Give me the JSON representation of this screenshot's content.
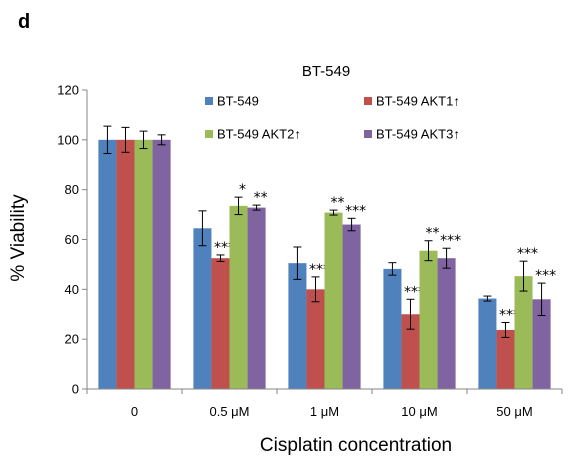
{
  "panel_label": "d",
  "chart_data": {
    "type": "bar",
    "title": "BT-549",
    "xlabel": "Cisplatin concentration",
    "ylabel": "% Viability",
    "ylim": [
      0,
      120
    ],
    "yticks": [
      0,
      20,
      40,
      60,
      80,
      100,
      120
    ],
    "categories": [
      "0",
      "0.5 μM",
      "1 μM",
      "10 μM",
      "50 μM"
    ],
    "legend_position": "top",
    "series": [
      {
        "name": "BT-549",
        "color": "#4f81bd",
        "values": [
          100,
          64.5,
          50.5,
          48.2,
          36.3
        ],
        "errors": [
          5.5,
          7,
          6.5,
          2.5,
          1
        ],
        "annotations": [
          "",
          "",
          "",
          "",
          ""
        ]
      },
      {
        "name": "BT-549 AKT1↑",
        "color": "#c0504d",
        "values": [
          100,
          52.5,
          40,
          30,
          23.7
        ],
        "errors": [
          5,
          1.3,
          5,
          6,
          3
        ],
        "annotations": [
          "",
          "***",
          "***",
          "***",
          "***"
        ]
      },
      {
        "name": "BT-549 AKT2↑",
        "color": "#9bbb59",
        "values": [
          100,
          73.5,
          70.8,
          55.5,
          45.3
        ],
        "errors": [
          3.5,
          3.5,
          1,
          4,
          6
        ],
        "annotations": [
          "",
          "*",
          "**",
          "**",
          "***"
        ]
      },
      {
        "name": "BT-549 AKT3↑",
        "color": "#8064a2",
        "values": [
          100,
          72.8,
          66,
          52.5,
          36
        ],
        "errors": [
          2,
          1,
          2.5,
          4,
          6.5
        ],
        "annotations": [
          "",
          "**",
          "***",
          "***",
          "***"
        ]
      }
    ]
  }
}
